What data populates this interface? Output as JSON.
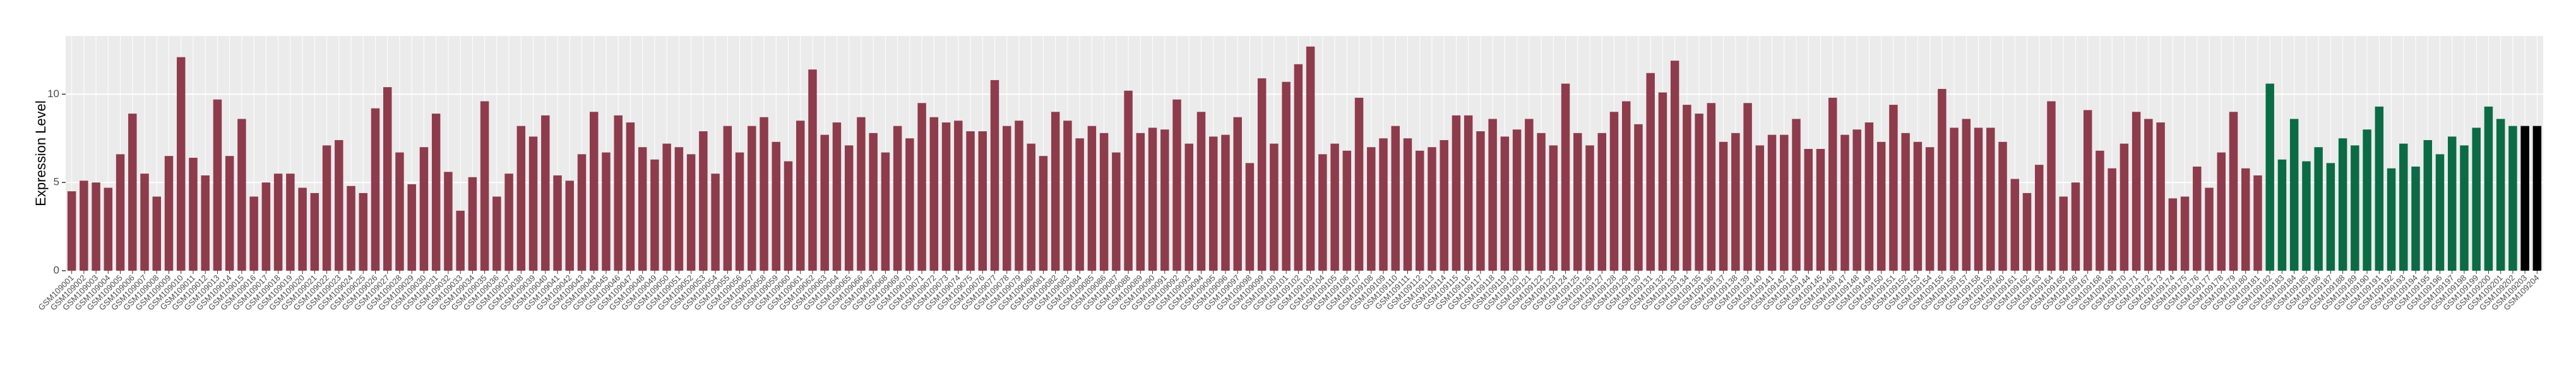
{
  "chart_data": {
    "type": "bar",
    "y_label": "Expression Level",
    "ylim": [
      0,
      13.3
    ],
    "yticks": [
      0,
      5,
      10
    ],
    "grid": true,
    "categories": [
      "GSM109001",
      "GSM109002",
      "GSM109003",
      "GSM109004",
      "GSM109005",
      "GSM109006",
      "GSM109007",
      "GSM109008",
      "GSM109009",
      "GSM109010",
      "GSM109011",
      "GSM109012",
      "GSM109013",
      "GSM109014",
      "GSM109015",
      "GSM109016",
      "GSM109017",
      "GSM109018",
      "GSM109019",
      "GSM109020",
      "GSM109021",
      "GSM109022",
      "GSM109023",
      "GSM109024",
      "GSM109025",
      "GSM109026",
      "GSM109027",
      "GSM109028",
      "GSM109029",
      "GSM109030",
      "GSM109031",
      "GSM109032",
      "GSM109033",
      "GSM109034",
      "GSM109035",
      "GSM109036",
      "GSM109037",
      "GSM109038",
      "GSM109039",
      "GSM109040",
      "GSM109041",
      "GSM109042",
      "GSM109043",
      "GSM109044",
      "GSM109045",
      "GSM109046",
      "GSM109047",
      "GSM109048",
      "GSM109049",
      "GSM109050",
      "GSM109051",
      "GSM109052",
      "GSM109053",
      "GSM109054",
      "GSM109055",
      "GSM109056",
      "GSM109057",
      "GSM109058",
      "GSM109059",
      "GSM109060",
      "GSM109061",
      "GSM109062",
      "GSM109063",
      "GSM109064",
      "GSM109065",
      "GSM109066",
      "GSM109067",
      "GSM109068",
      "GSM109069",
      "GSM109070",
      "GSM109071",
      "GSM109072",
      "GSM109073",
      "GSM109074",
      "GSM109075",
      "GSM109076",
      "GSM109077",
      "GSM109078",
      "GSM109079",
      "GSM109080",
      "GSM109081",
      "GSM109082",
      "GSM109083",
      "GSM109084",
      "GSM109085",
      "GSM109086",
      "GSM109087",
      "GSM109088",
      "GSM109089",
      "GSM109090",
      "GSM109091",
      "GSM109092",
      "GSM109093",
      "GSM109094",
      "GSM109095",
      "GSM109096",
      "GSM109097",
      "GSM109098",
      "GSM109099",
      "GSM109100",
      "GSM109101",
      "GSM109102",
      "GSM109103",
      "GSM109104",
      "GSM109105",
      "GSM109106",
      "GSM109107",
      "GSM109108",
      "GSM109109",
      "GSM109110",
      "GSM109111",
      "GSM109112",
      "GSM109113",
      "GSM109114",
      "GSM109115",
      "GSM109116",
      "GSM109117",
      "GSM109118",
      "GSM109119",
      "GSM109120",
      "GSM109121",
      "GSM109122",
      "GSM109123",
      "GSM109124",
      "GSM109125",
      "GSM109126",
      "GSM109127",
      "GSM109128",
      "GSM109129",
      "GSM109130",
      "GSM109131",
      "GSM109132",
      "GSM109133",
      "GSM109134",
      "GSM109135",
      "GSM109136",
      "GSM109137",
      "GSM109138",
      "GSM109139",
      "GSM109140",
      "GSM109141",
      "GSM109142",
      "GSM109143",
      "GSM109144",
      "GSM109145",
      "GSM109146",
      "GSM109147",
      "GSM109148",
      "GSM109149",
      "GSM109150",
      "GSM109151",
      "GSM109152",
      "GSM109153",
      "GSM109154",
      "GSM109155",
      "GSM109156",
      "GSM109157",
      "GSM109158",
      "GSM109159",
      "GSM109160",
      "GSM109161",
      "GSM109162",
      "GSM109163",
      "GSM109164",
      "GSM109165",
      "GSM109166",
      "GSM109167",
      "GSM109168",
      "GSM109169",
      "GSM109170",
      "GSM109171",
      "GSM109172",
      "GSM109173",
      "GSM109174",
      "GSM109175",
      "GSM109176",
      "GSM109177",
      "GSM109178",
      "GSM109179",
      "GSM109180",
      "GSM109181",
      "GSM109182",
      "GSM109183",
      "GSM109184",
      "GSM109185",
      "GSM109186",
      "GSM109187",
      "GSM109188",
      "GSM109189",
      "GSM109190",
      "GSM109191",
      "GSM109192",
      "GSM109193",
      "GSM109194",
      "GSM109195",
      "GSM109196",
      "GSM109197",
      "GSM109198",
      "GSM109199",
      "GSM109200",
      "GSM109201",
      "GSM109202",
      "GSM109203",
      "GSM109204"
    ],
    "values": [
      4.5,
      5.1,
      5.0,
      4.7,
      6.6,
      8.9,
      5.5,
      4.2,
      6.5,
      12.1,
      6.4,
      5.4,
      9.7,
      6.5,
      8.6,
      4.2,
      5.0,
      5.5,
      5.5,
      4.7,
      4.4,
      7.1,
      7.4,
      4.8,
      4.4,
      9.2,
      10.4,
      6.7,
      4.9,
      7.0,
      8.9,
      5.6,
      3.4,
      5.3,
      9.6,
      4.2,
      5.5,
      8.2,
      7.6,
      8.8,
      5.4,
      5.1,
      6.6,
      9.0,
      6.7,
      8.8,
      8.4,
      7.0,
      6.3,
      7.2,
      7.0,
      6.6,
      7.9,
      5.5,
      8.2,
      6.7,
      8.2,
      8.7,
      7.3,
      6.2,
      8.5,
      11.4,
      7.7,
      8.4,
      7.1,
      8.7,
      7.8,
      6.7,
      8.2,
      7.5,
      9.5,
      8.7,
      8.4,
      8.5,
      7.9,
      7.9,
      10.8,
      8.2,
      8.5,
      7.2,
      6.5,
      9.0,
      8.5,
      7.5,
      8.2,
      7.8,
      6.7,
      10.2,
      7.8,
      8.1,
      8.0,
      9.7,
      7.2,
      9.0,
      7.6,
      7.7,
      8.7,
      6.1,
      10.9,
      7.2,
      10.7,
      11.7,
      12.7,
      6.6,
      7.2,
      6.8,
      9.8,
      7.0,
      7.5,
      8.2,
      7.5,
      6.8,
      7.0,
      7.4,
      8.8,
      8.8,
      7.9,
      8.6,
      7.6,
      8.0,
      8.6,
      7.8,
      7.1,
      10.6,
      7.8,
      7.1,
      7.8,
      9.0,
      9.6,
      8.3,
      11.2,
      10.1,
      11.9,
      9.4,
      8.9,
      9.5,
      7.3,
      7.8,
      9.5,
      7.1,
      7.7,
      7.7,
      8.6,
      6.9,
      6.9,
      9.8,
      7.7,
      8.0,
      8.4,
      7.3,
      9.4,
      7.8,
      7.3,
      7.0,
      10.3,
      8.1,
      8.6,
      8.1,
      8.1,
      7.3,
      5.2,
      4.4,
      6.0,
      9.6,
      4.2,
      5.0,
      9.1,
      6.8,
      5.8,
      7.2,
      9.0,
      8.6,
      8.4,
      4.1,
      4.2,
      5.9,
      4.7,
      6.7,
      9.0,
      5.8,
      5.4,
      10.6,
      6.3,
      8.6,
      6.2,
      7.0,
      6.1,
      7.5,
      7.1,
      8.0,
      9.3,
      5.8,
      7.2,
      5.9,
      7.4,
      6.6,
      7.6,
      7.1,
      8.1,
      9.3,
      8.6,
      8.2,
      8.2,
      8.2
    ],
    "colors": [
      "#8e3b4c",
      "#8e3b4c",
      "#8e3b4c",
      "#8e3b4c",
      "#8e3b4c",
      "#8e3b4c",
      "#8e3b4c",
      "#8e3b4c",
      "#8e3b4c",
      "#8e3b4c",
      "#8e3b4c",
      "#8e3b4c",
      "#8e3b4c",
      "#8e3b4c",
      "#8e3b4c",
      "#8e3b4c",
      "#8e3b4c",
      "#8e3b4c",
      "#8e3b4c",
      "#8e3b4c",
      "#8e3b4c",
      "#8e3b4c",
      "#8e3b4c",
      "#8e3b4c",
      "#8e3b4c",
      "#8e3b4c",
      "#8e3b4c",
      "#8e3b4c",
      "#8e3b4c",
      "#8e3b4c",
      "#8e3b4c",
      "#8e3b4c",
      "#8e3b4c",
      "#8e3b4c",
      "#8e3b4c",
      "#8e3b4c",
      "#8e3b4c",
      "#8e3b4c",
      "#8e3b4c",
      "#8e3b4c",
      "#8e3b4c",
      "#8e3b4c",
      "#8e3b4c",
      "#8e3b4c",
      "#8e3b4c",
      "#8e3b4c",
      "#8e3b4c",
      "#8e3b4c",
      "#8e3b4c",
      "#8e3b4c",
      "#8e3b4c",
      "#8e3b4c",
      "#8e3b4c",
      "#8e3b4c",
      "#8e3b4c",
      "#8e3b4c",
      "#8e3b4c",
      "#8e3b4c",
      "#8e3b4c",
      "#8e3b4c",
      "#8e3b4c",
      "#8e3b4c",
      "#8e3b4c",
      "#8e3b4c",
      "#8e3b4c",
      "#8e3b4c",
      "#8e3b4c",
      "#8e3b4c",
      "#8e3b4c",
      "#8e3b4c",
      "#8e3b4c",
      "#8e3b4c",
      "#8e3b4c",
      "#8e3b4c",
      "#8e3b4c",
      "#8e3b4c",
      "#8e3b4c",
      "#8e3b4c",
      "#8e3b4c",
      "#8e3b4c",
      "#8e3b4c",
      "#8e3b4c",
      "#8e3b4c",
      "#8e3b4c",
      "#8e3b4c",
      "#8e3b4c",
      "#8e3b4c",
      "#8e3b4c",
      "#8e3b4c",
      "#8e3b4c",
      "#8e3b4c",
      "#8e3b4c",
      "#8e3b4c",
      "#8e3b4c",
      "#8e3b4c",
      "#8e3b4c",
      "#8e3b4c",
      "#8e3b4c",
      "#8e3b4c",
      "#8e3b4c",
      "#8e3b4c",
      "#8e3b4c",
      "#8e3b4c",
      "#8e3b4c",
      "#8e3b4c",
      "#8e3b4c",
      "#8e3b4c",
      "#8e3b4c",
      "#8e3b4c",
      "#8e3b4c",
      "#8e3b4c",
      "#8e3b4c",
      "#8e3b4c",
      "#8e3b4c",
      "#8e3b4c",
      "#8e3b4c",
      "#8e3b4c",
      "#8e3b4c",
      "#8e3b4c",
      "#8e3b4c",
      "#8e3b4c",
      "#8e3b4c",
      "#8e3b4c",
      "#8e3b4c",
      "#8e3b4c",
      "#8e3b4c",
      "#8e3b4c",
      "#8e3b4c",
      "#8e3b4c",
      "#8e3b4c",
      "#8e3b4c",
      "#8e3b4c",
      "#8e3b4c",
      "#8e3b4c",
      "#8e3b4c",
      "#8e3b4c",
      "#8e3b4c",
      "#8e3b4c",
      "#8e3b4c",
      "#8e3b4c",
      "#8e3b4c",
      "#8e3b4c",
      "#8e3b4c",
      "#8e3b4c",
      "#8e3b4c",
      "#8e3b4c",
      "#8e3b4c",
      "#8e3b4c",
      "#8e3b4c",
      "#8e3b4c",
      "#8e3b4c",
      "#8e3b4c",
      "#8e3b4c",
      "#8e3b4c",
      "#8e3b4c",
      "#8e3b4c",
      "#8e3b4c",
      "#8e3b4c",
      "#8e3b4c",
      "#8e3b4c",
      "#8e3b4c",
      "#8e3b4c",
      "#8e3b4c",
      "#8e3b4c",
      "#8e3b4c",
      "#8e3b4c",
      "#8e3b4c",
      "#8e3b4c",
      "#8e3b4c",
      "#8e3b4c",
      "#8e3b4c",
      "#8e3b4c",
      "#8e3b4c",
      "#8e3b4c",
      "#8e3b4c",
      "#8e3b4c",
      "#8e3b4c",
      "#8e3b4c",
      "#8e3b4c",
      "#8e3b4c",
      "#8e3b4c",
      "#0b6b45",
      "#0b6b45",
      "#0b6b45",
      "#0b6b45",
      "#0b6b45",
      "#0b6b45",
      "#0b6b45",
      "#0b6b45",
      "#0b6b45",
      "#0b6b45",
      "#0b6b45",
      "#0b6b45",
      "#0b6b45",
      "#0b6b45",
      "#0b6b45",
      "#0b6b45",
      "#0b6b45",
      "#0b6b45",
      "#0b6b45",
      "#0b6b45",
      "#0b6b45"
    ]
  }
}
